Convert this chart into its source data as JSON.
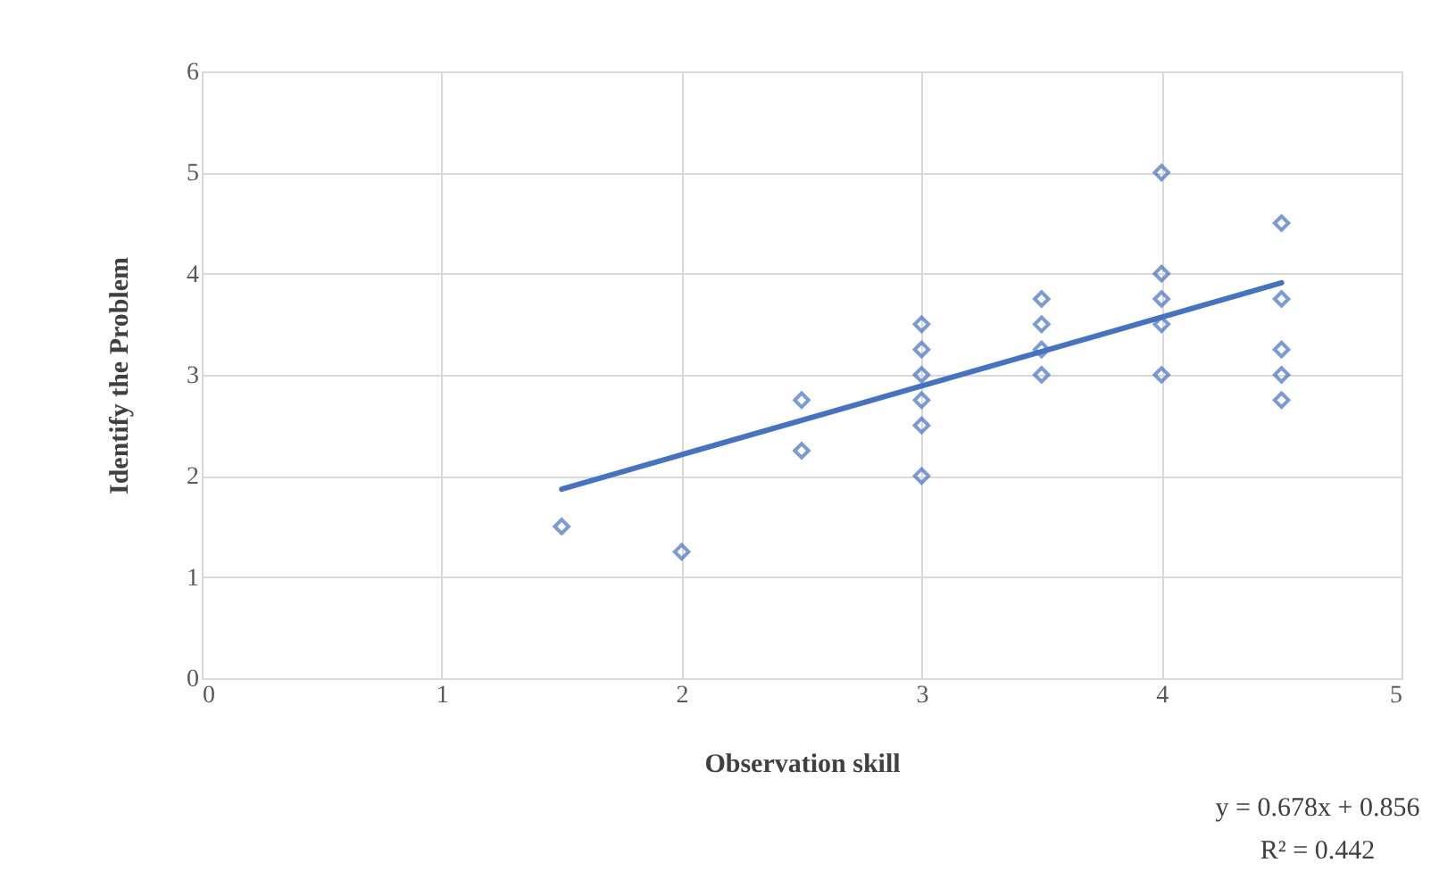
{
  "chart_data": {
    "type": "scatter",
    "xlabel": "Observation skill",
    "ylabel": "Identify the Problem",
    "xlim": [
      0,
      5
    ],
    "xticks": [
      0,
      1,
      2,
      3,
      4,
      5
    ],
    "ylim": [
      0,
      6
    ],
    "yticks": [
      0,
      1,
      2,
      3,
      4,
      5,
      6
    ],
    "grid": true,
    "legend": false,
    "series": [
      {
        "color": "#4472c4",
        "marker": "diamond",
        "x": [
          1.5,
          2,
          2.5,
          2.5,
          3,
          3,
          3,
          3,
          3,
          3,
          3.5,
          3.5,
          3.5,
          3.5,
          4,
          4,
          4,
          4,
          4,
          4.5,
          4.5,
          4.5,
          4.5,
          4.5
        ],
        "values": [
          1.5,
          1.25,
          2.75,
          2.25,
          3.5,
          3.25,
          3.0,
          2.75,
          2.5,
          2.0,
          3.75,
          3.5,
          3.25,
          3.0,
          5,
          4,
          3.75,
          3.5,
          3.0,
          4.5,
          3.75,
          3.25,
          3.0,
          2.75
        ]
      },
      {
        "type": "line",
        "color": "#4472c4",
        "marker": "none",
        "line_style": "solid",
        "x": [
          1.5,
          4.5
        ],
        "values": [
          1.87,
          3.91
        ]
      }
    ],
    "annotations": [
      "y = 0.678x + 0.856",
      "R² = 0.442"
    ]
  }
}
